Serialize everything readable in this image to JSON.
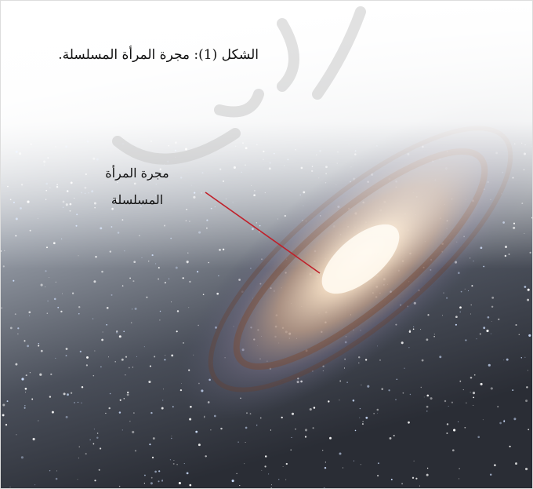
{
  "figure": {
    "caption": "الشكل (1): مجرة المرأة المسلسلة.",
    "label_lines": [
      "مجرة المرأة",
      "المسلسلة"
    ]
  }
}
